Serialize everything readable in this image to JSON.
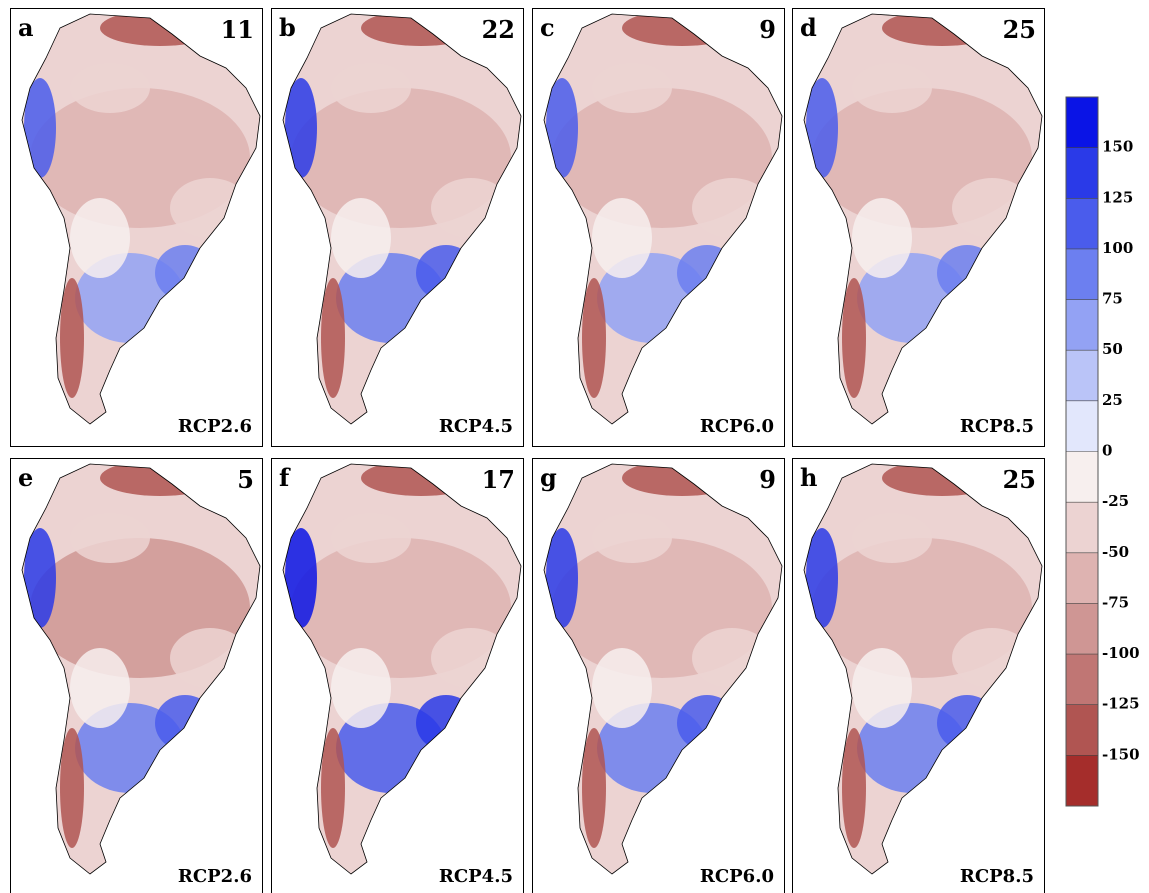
{
  "panels": [
    {
      "letter": "a",
      "value": 11,
      "scenario": "RCP2.6"
    },
    {
      "letter": "b",
      "value": 22,
      "scenario": "RCP4.5"
    },
    {
      "letter": "c",
      "value": 9,
      "scenario": "RCP6.0"
    },
    {
      "letter": "d",
      "value": 25,
      "scenario": "RCP8.5"
    },
    {
      "letter": "e",
      "value": 5,
      "scenario": "RCP2.6"
    },
    {
      "letter": "f",
      "value": 17,
      "scenario": "RCP4.5"
    },
    {
      "letter": "g",
      "value": 9,
      "scenario": "RCP6.0"
    },
    {
      "letter": "h",
      "value": 25,
      "scenario": "RCP8.5"
    }
  ],
  "colorbar": {
    "ticks": [
      150,
      125,
      100,
      75,
      50,
      25,
      0,
      -25,
      -50,
      -75,
      -100,
      -125,
      -150
    ],
    "colors": [
      "#0a14e6",
      "#2a3ae8",
      "#4a5cec",
      "#6c7ff0",
      "#93a2f4",
      "#bac4f8",
      "#e2e7fc",
      "#f7efee",
      "#ecd3d2",
      "#deb3b1",
      "#cf9694",
      "#c07674",
      "#b05552",
      "#a52d2b"
    ]
  }
}
